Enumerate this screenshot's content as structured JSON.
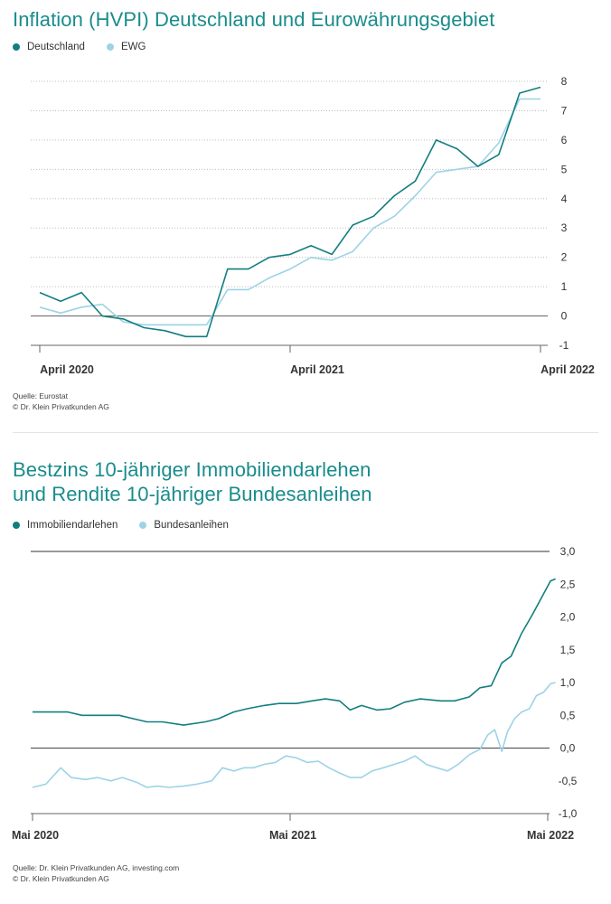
{
  "colors": {
    "teal": "#1a8c8c",
    "dark_teal": "#137e80",
    "light_blue": "#9dd3e6",
    "axis": "#555555",
    "grid": "#cccccc"
  },
  "chart1": {
    "title": "Inflation (HVPI) Deutschland und Eurowährungsgebiet",
    "legend": [
      {
        "label": "Deutschland",
        "color": "#137e80"
      },
      {
        "label": "EWG",
        "color": "#9dd3e6"
      }
    ],
    "source_lines": [
      "Quelle: Eurostat",
      "© Dr. Klein Privatkunden AG"
    ]
  },
  "chart2": {
    "title_lines": [
      "Bestzins 10-jähriger Immobiliendarlehen",
      "und Rendite 10-jähriger Bundesanleihen"
    ],
    "legend": [
      {
        "label": "Immobiliendarlehen",
        "color": "#137e80"
      },
      {
        "label": "Bundesanleihen",
        "color": "#9dd3e6"
      }
    ],
    "source_lines": [
      "Quelle: Dr. Klein Privatkunden AG, investing.com",
      "© Dr. Klein Privatkunden AG"
    ]
  },
  "chart_data": [
    {
      "type": "line",
      "title": "Inflation (HVPI) Deutschland und Eurowährungsgebiet",
      "xlabel": "",
      "ylabel": "",
      "x": [
        "2020-04",
        "2020-05",
        "2020-06",
        "2020-07",
        "2020-08",
        "2020-09",
        "2020-10",
        "2020-11",
        "2020-12",
        "2021-01",
        "2021-02",
        "2021-03",
        "2021-04",
        "2021-05",
        "2021-06",
        "2021-07",
        "2021-08",
        "2021-09",
        "2021-10",
        "2021-11",
        "2021-12",
        "2022-01",
        "2022-02",
        "2022-03",
        "2022-04"
      ],
      "x_tick_labels": [
        {
          "x": "2020-04",
          "label": "April 2020"
        },
        {
          "x": "2021-04",
          "label": "April 2021"
        },
        {
          "x": "2022-04",
          "label": "April 2022"
        }
      ],
      "ylim": [
        -1,
        8
      ],
      "yticks": [
        -1,
        0,
        1,
        2,
        3,
        4,
        5,
        6,
        7,
        8
      ],
      "grid": "horizontal dotted",
      "legend_position": "top-left",
      "series": [
        {
          "name": "Deutschland",
          "color": "#137e80",
          "values": [
            0.8,
            0.5,
            0.8,
            0.0,
            -0.1,
            -0.4,
            -0.5,
            -0.7,
            -0.7,
            1.6,
            1.6,
            2.0,
            2.1,
            2.4,
            2.1,
            3.1,
            3.4,
            4.1,
            4.6,
            6.0,
            5.7,
            5.1,
            5.5,
            7.6,
            7.8
          ]
        },
        {
          "name": "EWG",
          "color": "#9dd3e6",
          "values": [
            0.3,
            0.1,
            0.3,
            0.4,
            -0.2,
            -0.3,
            -0.3,
            -0.3,
            -0.3,
            0.9,
            0.9,
            1.3,
            1.6,
            2.0,
            1.9,
            2.2,
            3.0,
            3.4,
            4.1,
            4.9,
            5.0,
            5.1,
            5.9,
            7.4,
            7.4
          ]
        }
      ]
    },
    {
      "type": "line",
      "title": "Bestzins 10-jähriger Immobiliendarlehen und Rendite 10-jähriger Bundesanleihen",
      "xlabel": "",
      "ylabel": "",
      "x_range": [
        "2020-05",
        "2022-05"
      ],
      "x_tick_labels": [
        {
          "x": "2020-05",
          "label": "Mai 2020"
        },
        {
          "x": "2021-05",
          "label": "Mai 2021"
        },
        {
          "x": "2022-05",
          "label": "Mai 2022"
        }
      ],
      "ylim": [
        -1.0,
        3.0
      ],
      "yticks": [
        -1.0,
        -0.5,
        0.0,
        0.5,
        1.0,
        1.5,
        2.0,
        2.5,
        3.0
      ],
      "ytick_labels": [
        "-1,0",
        "-0,5",
        "0,0",
        "0,5",
        "1,0",
        "1,5",
        "2,0",
        "2,5",
        "3,0"
      ],
      "grid": "none",
      "legend_position": "top-left",
      "series": [
        {
          "name": "Immobiliendarlehen",
          "color": "#137e80",
          "x": [
            "2020-05-01",
            "2020-06-01",
            "2020-06-20",
            "2020-07-10",
            "2020-08-01",
            "2020-09-01",
            "2020-09-20",
            "2020-10-10",
            "2020-11-01",
            "2020-12-01",
            "2021-01-01",
            "2021-01-20",
            "2021-02-10",
            "2021-03-01",
            "2021-03-25",
            "2021-04-15",
            "2021-05-10",
            "2021-06-01",
            "2021-06-20",
            "2021-07-10",
            "2021-07-25",
            "2021-08-10",
            "2021-09-01",
            "2021-09-20",
            "2021-10-10",
            "2021-11-01",
            "2021-12-01",
            "2021-12-20",
            "2022-01-10",
            "2022-01-25",
            "2022-02-10",
            "2022-02-25",
            "2022-03-10",
            "2022-03-25",
            "2022-04-10",
            "2022-04-25",
            "2022-05-05",
            "2022-05-12"
          ],
          "values": [
            0.55,
            0.55,
            0.55,
            0.5,
            0.5,
            0.5,
            0.45,
            0.4,
            0.4,
            0.35,
            0.4,
            0.45,
            0.55,
            0.6,
            0.65,
            0.68,
            0.68,
            0.72,
            0.75,
            0.72,
            0.58,
            0.65,
            0.58,
            0.6,
            0.7,
            0.75,
            0.72,
            0.72,
            0.78,
            0.92,
            0.95,
            1.3,
            1.4,
            1.75,
            2.05,
            2.35,
            2.55,
            2.58
          ]
        },
        {
          "name": "Bundesanleihen",
          "color": "#9dd3e6",
          "x": [
            "2020-05-01",
            "2020-05-20",
            "2020-06-10",
            "2020-06-25",
            "2020-07-15",
            "2020-08-01",
            "2020-08-20",
            "2020-09-05",
            "2020-09-25",
            "2020-10-10",
            "2020-10-25",
            "2020-11-10",
            "2020-12-01",
            "2020-12-20",
            "2021-01-10",
            "2021-01-25",
            "2021-02-10",
            "2021-02-25",
            "2021-03-10",
            "2021-03-25",
            "2021-04-10",
            "2021-04-25",
            "2021-05-10",
            "2021-05-25",
            "2021-06-10",
            "2021-06-25",
            "2021-07-10",
            "2021-07-25",
            "2021-08-10",
            "2021-08-25",
            "2021-09-10",
            "2021-09-25",
            "2021-10-10",
            "2021-10-25",
            "2021-11-10",
            "2021-11-25",
            "2021-12-10",
            "2021-12-25",
            "2022-01-10",
            "2022-01-25",
            "2022-02-05",
            "2022-02-15",
            "2022-02-25",
            "2022-03-05",
            "2022-03-15",
            "2022-03-25",
            "2022-04-05",
            "2022-04-15",
            "2022-04-25",
            "2022-05-05",
            "2022-05-12"
          ],
          "values": [
            -0.6,
            -0.55,
            -0.3,
            -0.45,
            -0.48,
            -0.45,
            -0.5,
            -0.45,
            -0.52,
            -0.6,
            -0.58,
            -0.6,
            -0.58,
            -0.55,
            -0.5,
            -0.3,
            -0.35,
            -0.3,
            -0.3,
            -0.25,
            -0.22,
            -0.12,
            -0.15,
            -0.22,
            -0.2,
            -0.3,
            -0.38,
            -0.45,
            -0.45,
            -0.35,
            -0.3,
            -0.25,
            -0.2,
            -0.12,
            -0.25,
            -0.3,
            -0.35,
            -0.25,
            -0.1,
            -0.02,
            0.2,
            0.28,
            -0.05,
            0.25,
            0.45,
            0.55,
            0.6,
            0.8,
            0.85,
            0.98,
            1.0
          ]
        }
      ]
    }
  ]
}
